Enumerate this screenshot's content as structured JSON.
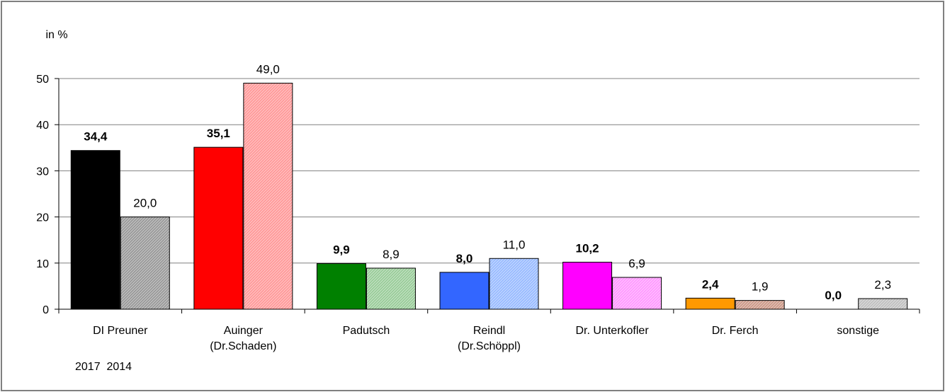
{
  "chart_data": {
    "type": "bar",
    "ylabel": "in %",
    "ylim": [
      0,
      50
    ],
    "yticks": [
      0,
      10,
      20,
      30,
      40,
      50
    ],
    "grid": true,
    "categories": [
      [
        "DI Preuner"
      ],
      [
        "Auinger",
        "(Dr.Schaden)"
      ],
      [
        "Padutsch"
      ],
      [
        "Reindl",
        "(Dr.Schöppl)"
      ],
      [
        "Dr. Unterkofler"
      ],
      [
        "Dr. Ferch"
      ],
      [
        "sonstige"
      ]
    ],
    "series": [
      {
        "name": "2017",
        "values": [
          34.4,
          35.1,
          9.9,
          8.0,
          10.2,
          2.4,
          0.0
        ],
        "labels": [
          "34,4",
          "35,1",
          "9,9",
          "8,0",
          "10,2",
          "2,4",
          "0,0"
        ],
        "bold": true
      },
      {
        "name": "2014",
        "values": [
          20.0,
          49.0,
          8.9,
          11.0,
          6.9,
          1.9,
          2.3
        ],
        "labels": [
          "20,0",
          "49,0",
          "8,9",
          "11,0",
          "6,9",
          "1,9",
          "2,3"
        ],
        "bold": false
      }
    ],
    "colors_2017": [
      "#000000",
      "#ff0000",
      "#008000",
      "#3366ff",
      "#ff00ff",
      "#ff9900",
      "#c0c0c0"
    ],
    "colors_2014": [
      "#999999",
      "#ff9999",
      "#99cc99",
      "#99bbff",
      "#ff99ff",
      "#cc9988",
      "#c0c0c0"
    ],
    "legend_text": "2017  2014"
  }
}
